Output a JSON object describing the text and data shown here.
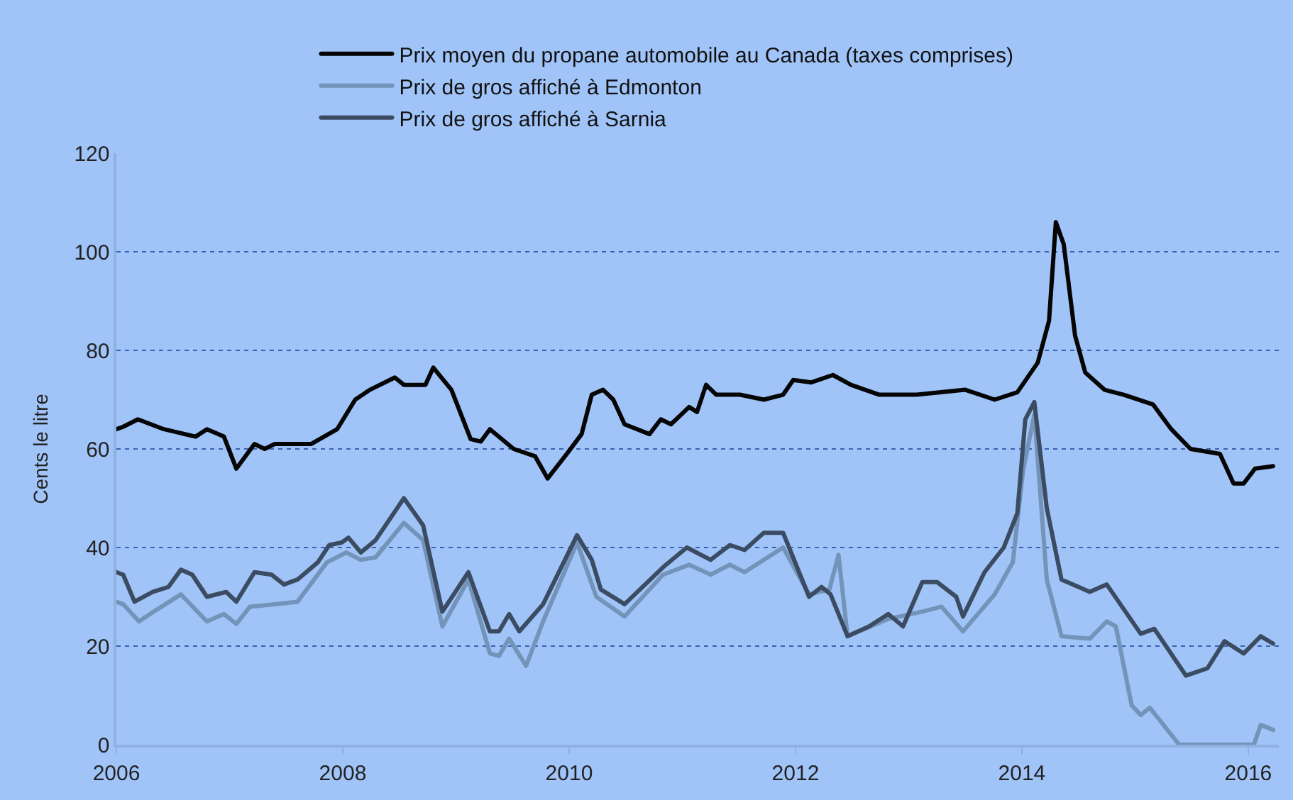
{
  "chart_data": {
    "type": "line",
    "ylabel": "Cents le litre",
    "xlim": [
      2006,
      2016.27
    ],
    "xticks": [
      2006,
      2008,
      2010,
      2012,
      2014,
      2016
    ],
    "ylim": [
      0,
      120
    ],
    "yticks": [
      0,
      20,
      40,
      60,
      80,
      100,
      120
    ],
    "grid": "y",
    "legend": "top",
    "line_style": "solid",
    "marker": "none",
    "series": [
      {
        "name": "Prix moyen du propane automobile au Canada (taxes comprises)",
        "color": "#050505",
        "x": [
          2006.0,
          2006.06,
          2006.19,
          2006.42,
          2006.7,
          2006.8,
          2006.95,
          2007.06,
          2007.22,
          2007.31,
          2007.4,
          2007.6,
          2007.72,
          2007.95,
          2008.11,
          2008.24,
          2008.46,
          2008.54,
          2008.73,
          2008.8,
          2008.96,
          2009.13,
          2009.22,
          2009.3,
          2009.51,
          2009.7,
          2009.81,
          2009.98,
          2010.11,
          2010.2,
          2010.3,
          2010.39,
          2010.49,
          2010.71,
          2010.81,
          2010.9,
          2011.06,
          2011.13,
          2011.21,
          2011.3,
          2011.51,
          2011.72,
          2011.89,
          2011.98,
          2012.14,
          2012.33,
          2012.49,
          2012.74,
          2013.07,
          2013.5,
          2013.76,
          2013.96,
          2014.14,
          2014.24,
          2014.3,
          2014.37,
          2014.47,
          2014.56,
          2014.73,
          2014.9,
          2015.16,
          2015.32,
          2015.49,
          2015.75,
          2015.87,
          2015.96,
          2016.06,
          2016.22
        ],
        "values": [
          64,
          64.5,
          66,
          64,
          62.5,
          64,
          62.5,
          56,
          61,
          60,
          61,
          61,
          61,
          64,
          70,
          72,
          74.5,
          73,
          73,
          76.5,
          72,
          62,
          61.5,
          64,
          60,
          58.5,
          54,
          59,
          63,
          71,
          72,
          70,
          65,
          63,
          66,
          65,
          68.5,
          67.5,
          73,
          71,
          71,
          70,
          71,
          74,
          73.5,
          75,
          73,
          71,
          71,
          72,
          70,
          71.5,
          77.5,
          86,
          106,
          101.5,
          83,
          75.5,
          72,
          71,
          69,
          64,
          60,
          59,
          53,
          53,
          56,
          56.5
        ]
      },
      {
        "name": "Prix de gros affiché à Edmonton",
        "color": "#7393b8",
        "x": [
          2006.0,
          2006.06,
          2006.2,
          2006.33,
          2006.57,
          2006.8,
          2006.95,
          2007.06,
          2007.18,
          2007.4,
          2007.6,
          2007.86,
          2008.03,
          2008.16,
          2008.29,
          2008.54,
          2008.71,
          2008.88,
          2009.11,
          2009.3,
          2009.38,
          2009.47,
          2009.62,
          2009.77,
          2010.07,
          2010.24,
          2010.49,
          2010.83,
          2011.06,
          2011.25,
          2011.42,
          2011.55,
          2011.89,
          2012.12,
          2012.3,
          2012.38,
          2012.46,
          2012.82,
          2013.12,
          2013.29,
          2013.48,
          2013.76,
          2013.92,
          2014.01,
          2014.11,
          2014.22,
          2014.35,
          2014.6,
          2014.75,
          2014.83,
          2014.97,
          2015.05,
          2015.13,
          2015.39,
          2016.05,
          2016.11,
          2016.22
        ],
        "values": [
          29,
          28.5,
          25,
          27,
          30.5,
          25,
          26.5,
          24.5,
          28,
          28.5,
          29,
          37,
          39,
          37.5,
          38,
          45,
          41.5,
          24,
          33.5,
          18.5,
          18,
          21.5,
          16,
          25,
          41,
          30,
          26,
          34.5,
          36.5,
          34.5,
          36.5,
          35,
          40,
          30.5,
          31.5,
          38.5,
          22,
          25.5,
          27,
          28,
          23,
          30.5,
          37,
          55.5,
          67,
          33.5,
          22,
          21.5,
          25,
          24,
          8,
          6,
          7.5,
          0,
          0,
          4,
          3
        ]
      },
      {
        "name": "Prix de gros affiché à Sarnia",
        "color": "#3b4c62",
        "x": [
          2006.0,
          2006.06,
          2006.16,
          2006.32,
          2006.46,
          2006.57,
          2006.67,
          2006.8,
          2006.97,
          2007.06,
          2007.22,
          2007.37,
          2007.48,
          2007.6,
          2007.78,
          2007.88,
          2007.99,
          2008.05,
          2008.16,
          2008.29,
          2008.54,
          2008.71,
          2008.88,
          2009.11,
          2009.3,
          2009.38,
          2009.47,
          2009.56,
          2009.77,
          2010.07,
          2010.2,
          2010.28,
          2010.49,
          2010.83,
          2011.04,
          2011.25,
          2011.42,
          2011.55,
          2011.72,
          2011.89,
          2012.12,
          2012.23,
          2012.31,
          2012.46,
          2012.65,
          2012.82,
          2012.95,
          2013.12,
          2013.25,
          2013.42,
          2013.48,
          2013.67,
          2013.84,
          2013.96,
          2014.03,
          2014.11,
          2014.22,
          2014.35,
          2014.6,
          2014.75,
          2015.05,
          2015.17,
          2015.45,
          2015.64,
          2015.79,
          2015.96,
          2016.11,
          2016.22
        ],
        "values": [
          35,
          34.5,
          29,
          31,
          32,
          35.5,
          34.5,
          30,
          31,
          29,
          35,
          34.5,
          32.5,
          33.5,
          37,
          40.5,
          41,
          42,
          39,
          41.5,
          50,
          44.5,
          27,
          35,
          23,
          23,
          26.5,
          23,
          28.5,
          42.5,
          37.5,
          31.5,
          28.5,
          36,
          40,
          37.5,
          40.5,
          39.5,
          43,
          43,
          30,
          32,
          30.5,
          22,
          24,
          26.5,
          24,
          33,
          33,
          30,
          26,
          35,
          40,
          47,
          66,
          69.5,
          48,
          33.5,
          31,
          32.5,
          22.5,
          23.5,
          14,
          15.5,
          21,
          18.5,
          22,
          20.5
        ]
      }
    ]
  }
}
